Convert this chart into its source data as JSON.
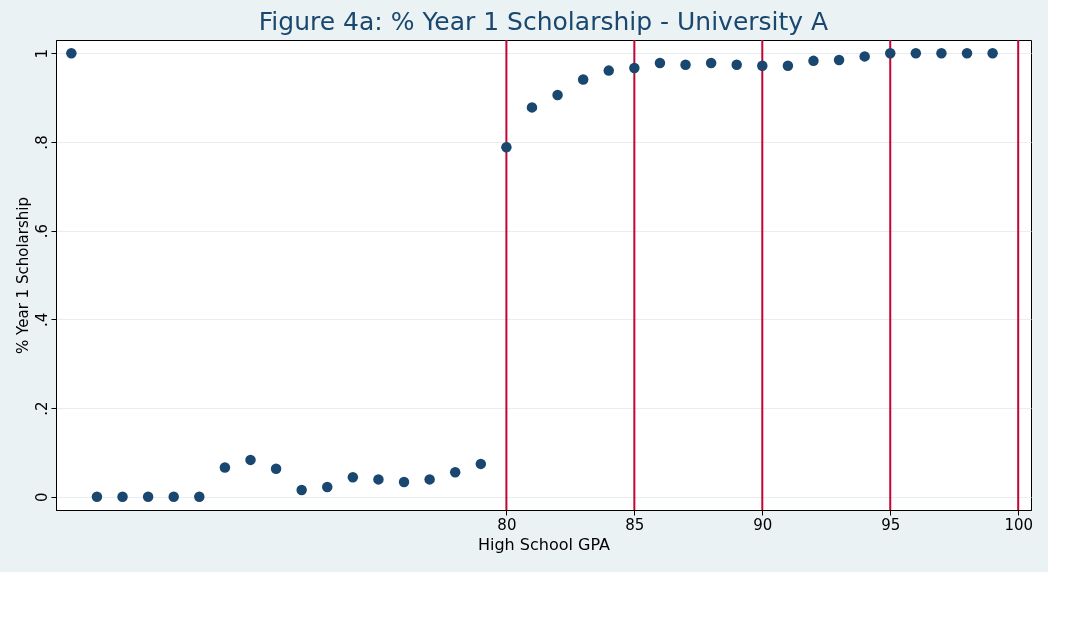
{
  "chart_data": {
    "type": "scatter",
    "title": "Figure 4a: % Year 1 Scholarship - University A",
    "xlabel": "High School GPA",
    "ylabel": "% Year 1 Scholarship",
    "x": [
      63,
      64,
      65,
      66,
      67,
      68,
      69,
      70,
      71,
      72,
      73,
      74,
      75,
      76,
      77,
      78,
      79,
      80,
      81,
      82,
      83,
      84,
      85,
      86,
      87,
      88,
      89,
      90,
      91,
      92,
      93,
      94,
      95,
      96,
      97,
      98,
      99
    ],
    "series": [
      {
        "color": "#1a476f",
        "values": [
          1.0,
          0,
          0,
          0,
          0,
          0,
          0.066,
          0.083,
          0.063,
          0.015,
          0.022,
          0.044,
          0.039,
          0.033,
          0.039,
          0.055,
          0.074,
          0.788,
          0.878,
          0.906,
          0.941,
          0.961,
          0.967,
          0.978,
          0.974,
          0.978,
          0.974,
          0.972,
          0.972,
          0.983,
          0.985,
          0.993,
          1.0,
          1.0,
          1.0,
          1.0,
          1.0
        ]
      }
    ],
    "xlim": [
      62.4,
      100.5
    ],
    "xticks": [
      80,
      85,
      90,
      95,
      100
    ],
    "ylim": [
      -0.03,
      1.03
    ],
    "yticks": [
      {
        "value": 0,
        "label": "0"
      },
      {
        "value": 0.2,
        "label": ".2"
      },
      {
        "value": 0.4,
        "label": ".4"
      },
      {
        "value": 0.6,
        "label": ".6"
      },
      {
        "value": 0.8,
        "label": ".8"
      },
      {
        "value": 1,
        "label": "1"
      }
    ],
    "ref_lines": [
      {
        "axis": "x",
        "value": 80,
        "color": "#c10534"
      },
      {
        "axis": "x",
        "value": 85,
        "color": "#c10534"
      },
      {
        "axis": "x",
        "value": 90,
        "color": "#c10534"
      },
      {
        "axis": "x",
        "value": 95,
        "color": "#c10534"
      },
      {
        "axis": "x",
        "value": 100,
        "color": "#c10534"
      }
    ],
    "grid": "y",
    "marker": "circle"
  }
}
